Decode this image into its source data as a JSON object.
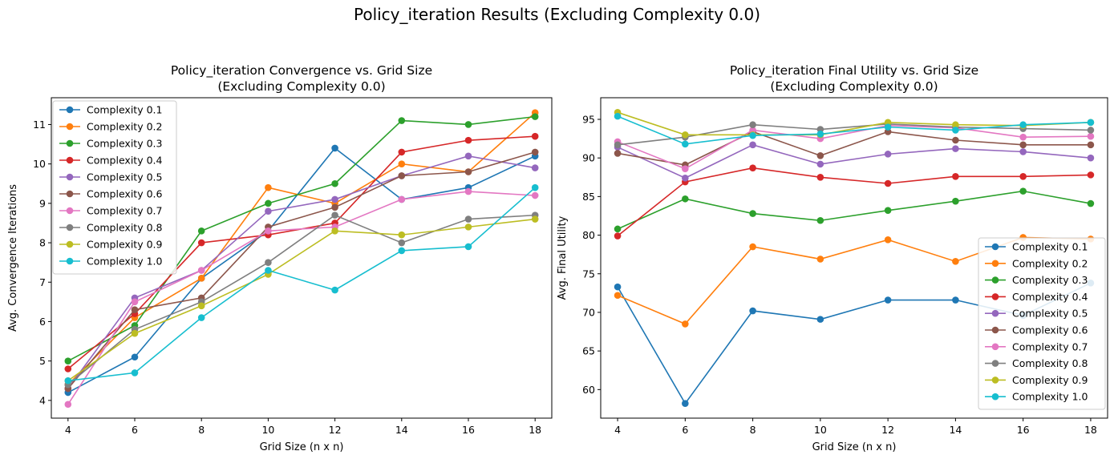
{
  "suptitle": "Policy_iteration Results (Excluding Complexity 0.0)",
  "chart_data": [
    {
      "type": "line",
      "title_line1": "Policy_iteration Convergence vs. Grid Size",
      "title_line2": "(Excluding Complexity 0.0)",
      "xlabel": "Grid Size (n x n)",
      "ylabel": "Avg. Convergence Iterations",
      "x": [
        4,
        6,
        8,
        10,
        12,
        14,
        16,
        18
      ],
      "xlim": [
        3.5,
        18.5
      ],
      "ylim": [
        3.55,
        11.68
      ],
      "yticks": [
        4,
        5,
        6,
        7,
        8,
        9,
        10,
        11
      ],
      "legend": "upper-left",
      "grid": false,
      "series": [
        {
          "name": "Complexity 0.1",
          "color": "#1f77b4",
          "values": [
            4.2,
            5.1,
            7.1,
            8.3,
            10.4,
            9.1,
            9.4,
            10.2
          ]
        },
        {
          "name": "Complexity 0.2",
          "color": "#ff7f0e",
          "values": [
            4.4,
            6.1,
            7.1,
            9.4,
            9.0,
            10.0,
            9.8,
            11.3
          ]
        },
        {
          "name": "Complexity 0.3",
          "color": "#2ca02c",
          "values": [
            5.0,
            5.9,
            8.3,
            9.0,
            9.5,
            11.1,
            11.0,
            11.2
          ]
        },
        {
          "name": "Complexity 0.4",
          "color": "#d62728",
          "values": [
            4.8,
            6.2,
            8.0,
            8.2,
            8.5,
            10.3,
            10.6,
            10.7
          ]
        },
        {
          "name": "Complexity 0.5",
          "color": "#9467bd",
          "values": [
            4.3,
            6.6,
            7.3,
            8.8,
            9.1,
            9.7,
            10.2,
            9.9
          ]
        },
        {
          "name": "Complexity 0.6",
          "color": "#8c564b",
          "values": [
            4.3,
            6.3,
            6.6,
            8.4,
            8.9,
            9.7,
            9.8,
            10.3
          ]
        },
        {
          "name": "Complexity 0.7",
          "color": "#e377c2",
          "values": [
            3.9,
            6.5,
            7.3,
            8.3,
            8.4,
            9.1,
            9.3,
            9.2
          ]
        },
        {
          "name": "Complexity 0.8",
          "color": "#7f7f7f",
          "values": [
            4.4,
            5.8,
            6.5,
            7.5,
            8.7,
            8.0,
            8.6,
            8.7
          ]
        },
        {
          "name": "Complexity 0.9",
          "color": "#bcbd22",
          "values": [
            4.5,
            5.7,
            6.4,
            7.2,
            8.3,
            8.2,
            8.4,
            8.6
          ]
        },
        {
          "name": "Complexity 1.0",
          "color": "#17becf",
          "values": [
            4.5,
            4.7,
            6.1,
            7.3,
            6.8,
            7.8,
            7.9,
            9.4
          ]
        }
      ]
    },
    {
      "type": "line",
      "title_line1": "Policy_iteration Final Utility vs. Grid Size",
      "title_line2": "(Excluding Complexity 0.0)",
      "xlabel": "Grid Size (n x n)",
      "ylabel": "Avg. Final Utility",
      "x": [
        4,
        6,
        8,
        10,
        12,
        14,
        16,
        18
      ],
      "xlim": [
        3.5,
        18.5
      ],
      "ylim": [
        56.3,
        97.8
      ],
      "yticks": [
        60,
        65,
        70,
        75,
        80,
        85,
        90,
        95
      ],
      "legend": "lower-right",
      "grid": false,
      "series": [
        {
          "name": "Complexity 0.1",
          "color": "#1f77b4",
          "values": [
            73.3,
            58.2,
            70.2,
            69.1,
            71.6,
            71.6,
            69.6,
            73.8
          ]
        },
        {
          "name": "Complexity 0.2",
          "color": "#ff7f0e",
          "values": [
            72.2,
            68.5,
            78.5,
            76.9,
            79.4,
            76.6,
            79.7,
            79.5
          ]
        },
        {
          "name": "Complexity 0.3",
          "color": "#2ca02c",
          "values": [
            80.8,
            84.7,
            82.8,
            81.9,
            83.2,
            84.4,
            85.7,
            84.1
          ]
        },
        {
          "name": "Complexity 0.4",
          "color": "#d62728",
          "values": [
            79.9,
            86.9,
            88.7,
            87.5,
            86.7,
            87.6,
            87.6,
            87.8
          ]
        },
        {
          "name": "Complexity 0.5",
          "color": "#9467bd",
          "values": [
            91.4,
            87.4,
            91.7,
            89.2,
            90.5,
            91.2,
            90.8,
            90.0
          ]
        },
        {
          "name": "Complexity 0.6",
          "color": "#8c564b",
          "values": [
            90.6,
            89.1,
            93.4,
            90.3,
            93.4,
            92.3,
            91.7,
            91.7
          ]
        },
        {
          "name": "Complexity 0.7",
          "color": "#e377c2",
          "values": [
            92.1,
            88.6,
            93.6,
            92.5,
            94.2,
            93.9,
            92.7,
            92.8
          ]
        },
        {
          "name": "Complexity 0.8",
          "color": "#7f7f7f",
          "values": [
            91.7,
            92.7,
            94.3,
            93.7,
            94.4,
            94.0,
            93.8,
            93.6
          ]
        },
        {
          "name": "Complexity 0.9",
          "color": "#bcbd22",
          "values": [
            95.9,
            93.0,
            93.0,
            93.0,
            94.6,
            94.3,
            94.2,
            94.6
          ]
        },
        {
          "name": "Complexity 1.0",
          "color": "#17becf",
          "values": [
            95.4,
            91.8,
            92.9,
            93.1,
            94.0,
            93.6,
            94.3,
            94.6
          ]
        }
      ]
    }
  ]
}
